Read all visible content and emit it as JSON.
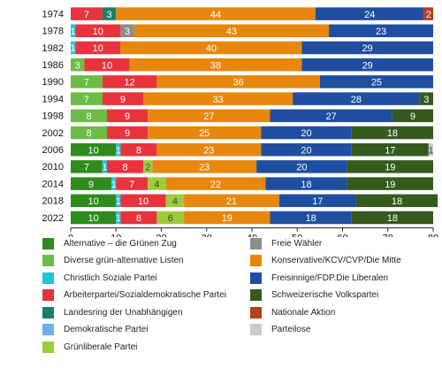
{
  "chart_data": {
    "type": "bar",
    "orientation": "horizontal",
    "stacked": true,
    "categories": [
      "1974",
      "1978",
      "1982",
      "1986",
      "1990",
      "1994",
      "1998",
      "2002",
      "2006",
      "2010",
      "2014",
      "2018",
      "2022"
    ],
    "xlim": [
      0,
      80
    ],
    "xticks": [
      0,
      10,
      20,
      30,
      40,
      50,
      60,
      70,
      80
    ],
    "grid": false,
    "legend_position": "bottom",
    "series": [
      {
        "name": "Alternative – die Grünen Zug",
        "color": "#2e8b1e",
        "values": [
          0,
          0,
          0,
          0,
          0,
          0,
          0,
          0,
          10,
          7,
          9,
          10,
          10
        ]
      },
      {
        "name": "Diverse grün-alternative Listen",
        "color": "#6cbd45",
        "values": [
          0,
          0,
          0,
          3,
          7,
          7,
          8,
          8,
          0,
          0,
          0,
          0,
          0
        ]
      },
      {
        "name": "Christlich Soziale Partei",
        "color": "#22c5d5",
        "values": [
          0,
          1,
          1,
          0,
          0,
          0,
          0,
          0,
          1,
          1,
          1,
          1,
          1
        ]
      },
      {
        "name": "Arbeiterpartei/Sozialdemokratische Partei",
        "color": "#e8333d",
        "values": [
          7,
          10,
          10,
          10,
          12,
          9,
          9,
          9,
          8,
          8,
          7,
          10,
          8
        ]
      },
      {
        "name": "Landesring der Unabhängigen",
        "color": "#1a7f6a",
        "values": [
          3,
          0,
          0,
          0,
          0,
          0,
          0,
          0,
          0,
          0,
          0,
          0,
          0
        ]
      },
      {
        "name": "Demokratische Partei",
        "color": "#6fb0ea",
        "values": [
          0,
          0,
          0,
          0,
          0,
          0,
          0,
          0,
          0,
          0,
          0,
          0,
          0
        ]
      },
      {
        "name": "Grünliberale Partei",
        "color": "#9ccc3a",
        "values": [
          0,
          0,
          0,
          0,
          0,
          0,
          0,
          0,
          0,
          2,
          4,
          4,
          6
        ]
      },
      {
        "name": "Freie Wähler",
        "color": "#8c8c8c",
        "values": [
          0,
          3,
          0,
          0,
          0,
          0,
          0,
          0,
          0,
          0,
          0,
          0,
          0
        ]
      },
      {
        "name": "Konservative/KCV/CVP/Die Mitte",
        "color": "#e8870e",
        "values": [
          44,
          43,
          40,
          38,
          36,
          33,
          27,
          25,
          23,
          23,
          22,
          21,
          19
        ]
      },
      {
        "name": "Freisinnige/FDP.Die Liberalen",
        "color": "#1f4ea0",
        "values": [
          24,
          23,
          29,
          29,
          25,
          28,
          27,
          20,
          20,
          20,
          18,
          17,
          18
        ]
      },
      {
        "name": "Schweizerische Volkspartei",
        "color": "#345a1e",
        "values": [
          0,
          0,
          0,
          0,
          0,
          3,
          9,
          18,
          17,
          19,
          19,
          18,
          18
        ]
      },
      {
        "name": "Nationale Aktion",
        "color": "#b5401a",
        "values": [
          2,
          0,
          0,
          0,
          0,
          0,
          0,
          0,
          0,
          0,
          0,
          0,
          0
        ]
      },
      {
        "name": "Parteilose",
        "color": "#cccccc",
        "values": [
          0,
          0,
          0,
          0,
          0,
          0,
          0,
          0,
          1,
          0,
          0,
          0,
          0
        ]
      }
    ],
    "series_order": [
      "Alternative – die Grünen Zug",
      "Diverse grün-alternative Listen",
      "Christlich Soziale Partei",
      "Arbeiterpartei/Sozialdemokratische Partei",
      "Landesring der Unabhängigen",
      "Demokratische Partei",
      "Grünliberale Partei",
      "Freie Wähler",
      "Konservative/KCV/CVP/Die Mitte",
      "Freisinnige/FDP.Die Liberalen",
      "Schweizerische Volkspartei",
      "Nationale Aktion",
      "Parteilose"
    ]
  },
  "legend_order": {
    "left": [
      "Alternative – die Grünen Zug",
      "Diverse grün-alternative Listen",
      "Christlich Soziale Partei",
      "Arbeiterpartei/Sozialdemokratische Partei",
      "Landesring der Unabhängigen",
      "Demokratische Partei",
      "Grünliberale Partei"
    ],
    "right": [
      "Freie Wähler",
      "Konservative/KCV/CVP/Die Mitte",
      "Freisinnige/FDP.Die Liberalen",
      "Schweizerische Volkspartei",
      "Nationale Aktion",
      "Parteilose"
    ]
  }
}
